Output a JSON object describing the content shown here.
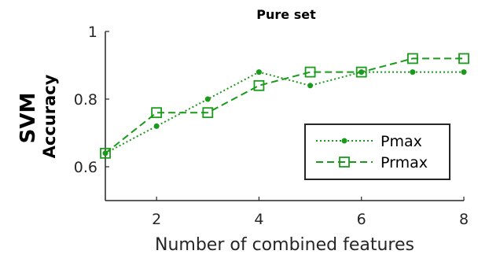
{
  "chart_data": {
    "type": "line",
    "title": "Pure set",
    "xlabel": "Number of combined features",
    "ylabel": "SVM",
    "ylabel_sub": "Accuracy",
    "xlim": [
      1,
      8
    ],
    "ylim": [
      0.5,
      1.0
    ],
    "xticks": [
      2,
      4,
      6,
      8
    ],
    "yticks": [
      0.6,
      0.8,
      1.0
    ],
    "ytick_labels": [
      "0.6",
      "0.8",
      "1"
    ],
    "x": [
      1,
      2,
      3,
      4,
      5,
      6,
      7,
      8
    ],
    "series": [
      {
        "name": "Pmax",
        "values": [
          0.64,
          0.72,
          0.8,
          0.88,
          0.84,
          0.88,
          0.88,
          0.88
        ],
        "color": "#1a9a1a",
        "line": "dotted",
        "marker": "dot"
      },
      {
        "name": "Prmax",
        "values": [
          0.64,
          0.76,
          0.76,
          0.84,
          0.88,
          0.88,
          0.92,
          0.92
        ],
        "color": "#1a9a1a",
        "line": "dashed",
        "marker": "square"
      }
    ],
    "grid": false,
    "legend_position": "lower-right"
  }
}
